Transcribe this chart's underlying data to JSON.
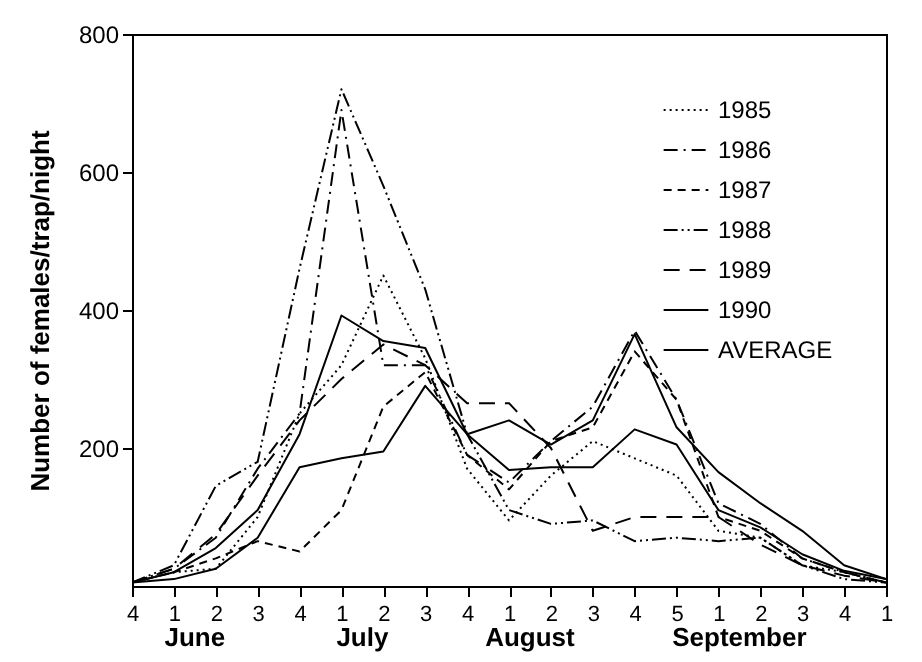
{
  "chart_data": {
    "type": "line",
    "ylabel": "Number of females/trap/night",
    "categories": [
      "4",
      "1",
      "2",
      "3",
      "4",
      "1",
      "2",
      "3",
      "4",
      "1",
      "2",
      "3",
      "4",
      "5",
      "1",
      "2",
      "3",
      "4",
      "1"
    ],
    "annotations": [
      "June",
      "July",
      "August",
      "September"
    ],
    "ylim": [
      0,
      800
    ],
    "yticks": [
      200,
      400,
      600,
      800
    ],
    "grid": false,
    "legend": "top right",
    "marker": "none",
    "series": [
      {
        "name": "1985",
        "color": "#000000",
        "line_style": "dotted",
        "values": [
          5,
          20,
          25,
          100,
          250,
          320,
          450,
          330,
          170,
          95,
          160,
          210,
          185,
          160,
          80,
          70,
          30,
          20,
          5
        ]
      },
      {
        "name": "1986",
        "color": "#000000",
        "line_style": "dashdot",
        "values": [
          5,
          25,
          70,
          170,
          250,
          690,
          320,
          320,
          190,
          150,
          210,
          260,
          370,
          270,
          120,
          90,
          40,
          20,
          5
        ]
      },
      {
        "name": "1987",
        "color": "#000000",
        "line_style": "dashed",
        "values": [
          5,
          20,
          40,
          65,
          50,
          110,
          260,
          310,
          190,
          140,
          210,
          230,
          340,
          270,
          100,
          80,
          40,
          20,
          5
        ]
      },
      {
        "name": "1988",
        "color": "#000000",
        "line_style": "dashdotdot",
        "values": [
          5,
          30,
          145,
          180,
          460,
          720,
          580,
          430,
          220,
          110,
          90,
          95,
          65,
          70,
          65,
          70,
          30,
          10,
          5
        ]
      },
      {
        "name": "1989",
        "color": "#000000",
        "line_style": "longdash",
        "values": [
          5,
          25,
          75,
          160,
          240,
          300,
          350,
          320,
          265,
          265,
          200,
          80,
          100,
          100,
          100,
          60,
          30,
          15,
          5
        ]
      },
      {
        "name": "1990",
        "color": "#000000",
        "line_style": "solid",
        "values": [
          5,
          10,
          25,
          70,
          172,
          185,
          195,
          290,
          220,
          240,
          205,
          240,
          365,
          230,
          165,
          120,
          80,
          30,
          10
        ]
      },
      {
        "name": "AVERAGE",
        "color": "#000000",
        "line_style": "solid",
        "values": [
          5,
          20,
          55,
          110,
          220,
          392,
          355,
          345,
          220,
          168,
          172,
          172,
          227,
          205,
          110,
          85,
          46,
          22,
          10
        ]
      }
    ]
  }
}
